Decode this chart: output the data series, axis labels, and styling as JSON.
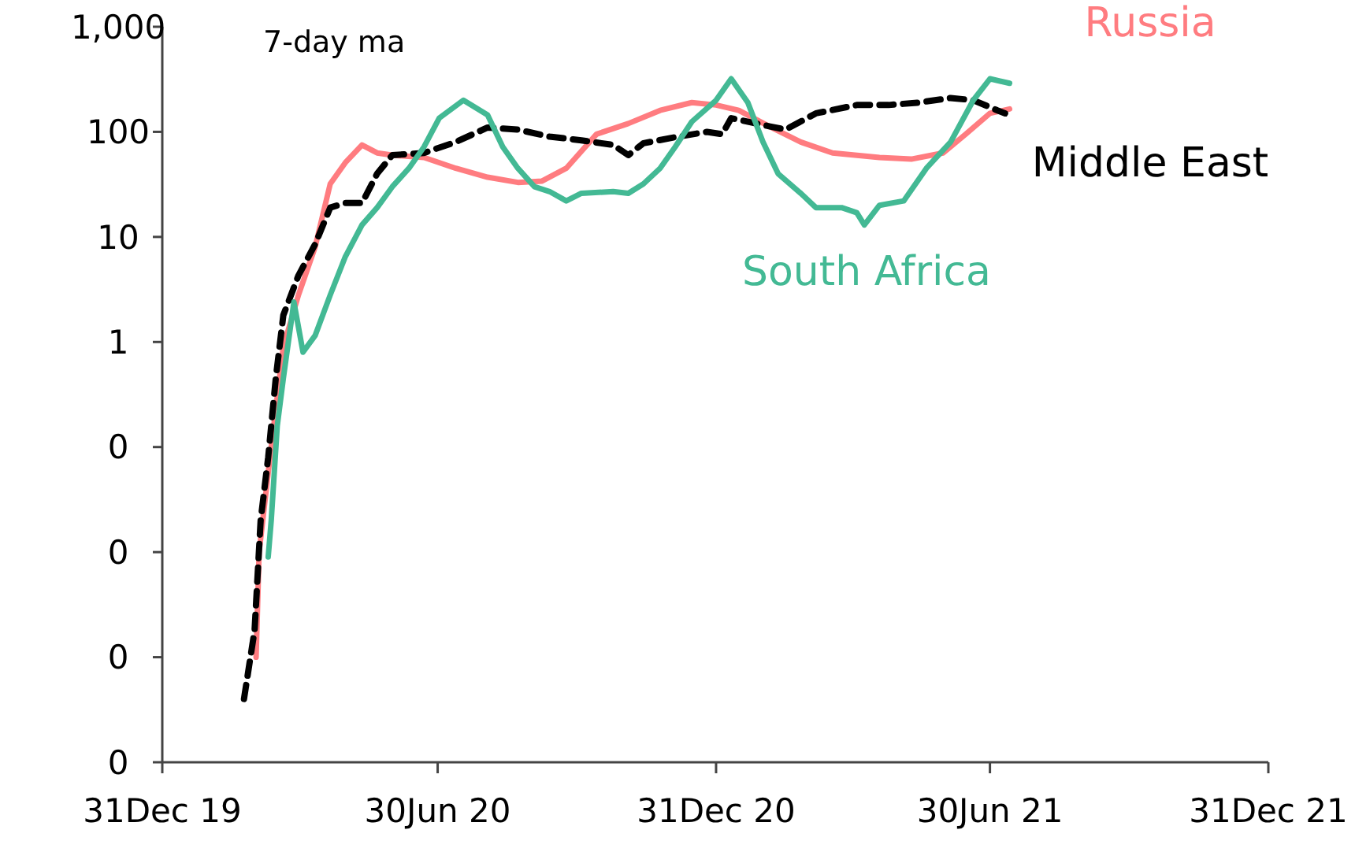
{
  "chart_data": {
    "type": "line",
    "log": "y",
    "annotations": [
      "7-day ma"
    ],
    "xlim": [
      "2019-12-31",
      "2021-12-31"
    ],
    "xticks": [
      {
        "value": "2019-12-31",
        "label": "31Dec 19"
      },
      {
        "value": "2020-06-30",
        "label": "30Jun 20"
      },
      {
        "value": "2020-12-31",
        "label": "31Dec 20"
      },
      {
        "value": "2021-06-30",
        "label": "30Jun 21"
      },
      {
        "value": "2021-12-31",
        "label": "31Dec 21"
      }
    ],
    "ylim": [
      0.0001,
      1000
    ],
    "yticks": [
      {
        "value": 0.0001,
        "label": "0"
      },
      {
        "value": 0.001,
        "label": "0"
      },
      {
        "value": 0.01,
        "label": "0"
      },
      {
        "value": 0.1,
        "label": "0"
      },
      1,
      10,
      100,
      {
        "value": 1000,
        "label": "1,000"
      }
    ],
    "grid": false,
    "legend": false,
    "marker": "none",
    "series": [
      {
        "name": "Russia",
        "color": "#ff7c80",
        "line_style": "solid",
        "x": [
          "2020-03-02",
          "2020-03-04",
          "2020-03-10",
          "2020-03-15",
          "2020-03-20",
          "2020-03-30",
          "2020-04-10",
          "2020-04-20",
          "2020-04-30",
          "2020-05-11",
          "2020-05-21",
          "2020-05-31",
          "2020-06-21",
          "2020-07-12",
          "2020-08-02",
          "2020-08-22",
          "2020-09-07",
          "2020-09-23",
          "2020-10-13",
          "2020-11-03",
          "2020-11-24",
          "2020-12-15",
          "2020-12-31",
          "2021-01-15",
          "2021-02-04",
          "2021-02-25",
          "2021-03-18",
          "2021-04-18",
          "2021-05-09",
          "2021-05-30",
          "2021-06-14",
          "2021-06-30",
          "2021-07-13"
        ],
        "values": [
          0.001,
          0.01,
          0.057,
          0.23,
          0.9,
          2.8,
          8,
          32,
          51,
          75,
          63,
          60,
          57,
          45,
          37,
          33,
          34,
          45,
          95,
          120,
          160,
          190,
          180,
          160,
          113,
          80,
          63,
          57,
          55,
          63,
          95,
          150,
          165
        ]
      },
      {
        "name": "Middle East",
        "color": "#000000",
        "line_style": "dashed",
        "x": [
          "2020-02-23",
          "2020-03-01",
          "2020-03-05",
          "2020-03-10",
          "2020-03-15",
          "2020-03-20",
          "2020-03-30",
          "2020-04-10",
          "2020-04-20",
          "2020-04-30",
          "2020-05-11",
          "2020-05-21",
          "2020-05-31",
          "2020-06-21",
          "2020-07-12",
          "2020-08-02",
          "2020-08-22",
          "2020-09-12",
          "2020-10-03",
          "2020-10-24",
          "2020-11-03",
          "2020-11-13",
          "2020-12-04",
          "2020-12-25",
          "2021-01-04",
          "2021-01-10",
          "2021-02-04",
          "2021-02-15",
          "2021-03-07",
          "2021-04-03",
          "2021-04-24",
          "2021-05-14",
          "2021-06-04",
          "2021-06-19",
          "2021-07-05",
          "2021-07-10"
        ],
        "values": [
          0.0004,
          0.0018,
          0.02,
          0.08,
          0.45,
          1.8,
          4.3,
          8.5,
          19,
          21,
          21,
          40,
          60,
          63,
          80,
          110,
          105,
          90,
          83,
          75,
          60,
          78,
          89,
          100,
          95,
          135,
          113,
          105,
          150,
          180,
          180,
          190,
          210,
          200,
          160,
          150
        ]
      },
      {
        "name": "South Africa",
        "color": "#43b994",
        "line_style": "solid",
        "x": [
          "2020-03-10",
          "2020-03-12",
          "2020-03-16",
          "2020-03-20",
          "2020-03-27",
          "2020-04-02",
          "2020-04-10",
          "2020-04-20",
          "2020-04-30",
          "2020-05-11",
          "2020-05-21",
          "2020-05-31",
          "2020-06-11",
          "2020-06-21",
          "2020-07-01",
          "2020-07-17",
          "2020-08-02",
          "2020-08-12",
          "2020-08-22",
          "2020-09-02",
          "2020-09-12",
          "2020-09-23",
          "2020-10-03",
          "2020-10-24",
          "2020-11-03",
          "2020-11-13",
          "2020-11-24",
          "2020-12-04",
          "2020-12-15",
          "2020-12-31",
          "2021-01-10",
          "2021-01-21",
          "2021-01-31",
          "2021-02-10",
          "2021-02-25",
          "2021-03-07",
          "2021-03-24",
          "2021-04-03",
          "2021-04-08",
          "2021-04-18",
          "2021-05-04",
          "2021-05-19",
          "2021-06-04",
          "2021-06-19",
          "2021-06-30",
          "2021-07-13"
        ],
        "values": [
          0.009,
          0.02,
          0.16,
          0.45,
          2.4,
          0.8,
          1.15,
          2.8,
          6.5,
          13,
          19,
          30,
          45,
          72,
          135,
          200,
          145,
          72,
          45,
          30,
          27,
          22,
          26,
          27,
          26,
          32,
          45,
          72,
          125,
          200,
          320,
          190,
          80,
          40,
          26,
          19,
          19,
          17,
          13,
          20,
          22,
          45,
          80,
          200,
          320,
          290
        ]
      }
    ]
  }
}
